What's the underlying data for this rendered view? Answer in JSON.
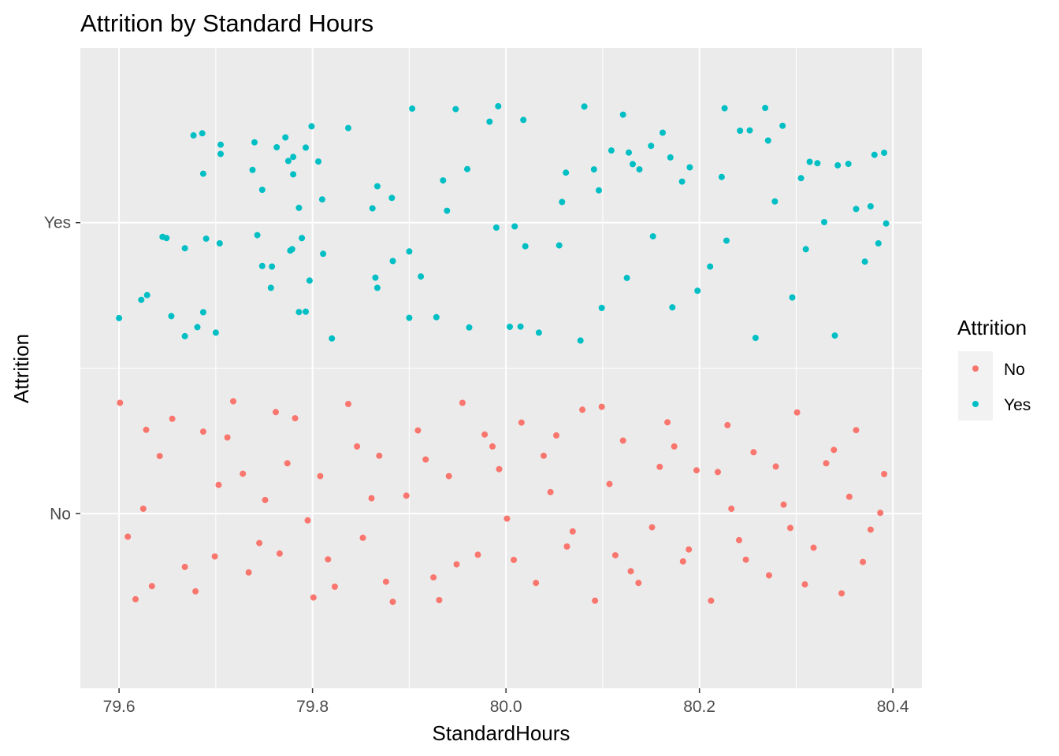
{
  "chart_data": {
    "type": "scatter",
    "title": "Attrition by Standard Hours",
    "xlabel": "StandardHours",
    "ylabel": "Attrition",
    "xlim": [
      79.56,
      80.43
    ],
    "x_ticks": [
      "79.6",
      "79.8",
      "80.0",
      "80.2",
      "80.4"
    ],
    "x_tick_values": [
      79.6,
      79.8,
      80.0,
      80.2,
      80.4
    ],
    "categories": [
      "No",
      "Yes"
    ],
    "ylim": [
      0.4,
      2.6
    ],
    "jitter": "horizontal and vertical jitter around StandardHours = 80 (width 0.4, height 0.4)",
    "grid": true,
    "legend": {
      "title": "Attrition",
      "position": "right",
      "entries": [
        {
          "label": "No",
          "color": "#F8766D"
        },
        {
          "label": "Yes",
          "color": "#00BFC4"
        }
      ]
    },
    "series": [
      {
        "name": "No",
        "color": "#F8766D",
        "point_count": 1233,
        "points": [
          [
            79.601,
            1.381
          ],
          [
            79.617,
            0.706
          ],
          [
            79.625,
            1.017
          ],
          [
            79.634,
            0.751
          ],
          [
            79.655,
            1.326
          ],
          [
            79.687,
            1.282
          ],
          [
            79.699,
            0.853
          ],
          [
            79.703,
            1.099
          ],
          [
            79.718,
            1.386
          ],
          [
            79.734,
            0.798
          ],
          [
            79.751,
            1.047
          ],
          [
            79.766,
            0.863
          ],
          [
            79.782,
            1.328
          ],
          [
            79.795,
            0.977
          ],
          [
            79.808,
            1.129
          ],
          [
            79.823,
            0.749
          ],
          [
            79.837,
            1.377
          ],
          [
            79.852,
            0.917
          ],
          [
            79.869,
            1.199
          ],
          [
            79.883,
            0.697
          ],
          [
            79.897,
            1.062
          ],
          [
            79.909,
            1.286
          ],
          [
            79.925,
            0.781
          ],
          [
            79.941,
            1.129
          ],
          [
            79.955,
            1.381
          ],
          [
            79.971,
            0.859
          ],
          [
            79.986,
            1.231
          ],
          [
            80.001,
            0.983
          ],
          [
            80.016,
            1.313
          ],
          [
            80.031,
            0.762
          ],
          [
            80.046,
            1.074
          ],
          [
            80.063,
            0.887
          ],
          [
            80.079,
            1.357
          ],
          [
            80.092,
            0.701
          ],
          [
            80.107,
            1.102
          ],
          [
            80.121,
            1.251
          ],
          [
            80.137,
            0.762
          ],
          [
            80.151,
            0.953
          ],
          [
            80.167,
            1.314
          ],
          [
            80.183,
            0.836
          ],
          [
            80.197,
            1.149
          ],
          [
            80.212,
            0.701
          ],
          [
            80.229,
            1.304
          ],
          [
            80.241,
            0.909
          ],
          [
            80.256,
            1.211
          ],
          [
            80.272,
            0.788
          ],
          [
            80.287,
            1.031
          ],
          [
            80.301,
            1.348
          ],
          [
            80.318,
            0.883
          ],
          [
            80.331,
            1.173
          ],
          [
            80.347,
            0.726
          ],
          [
            80.362,
            1.287
          ],
          [
            80.377,
            0.945
          ],
          [
            80.391,
            1.136
          ],
          [
            79.609,
            0.921
          ],
          [
            79.642,
            1.198
          ],
          [
            79.668,
            0.817
          ],
          [
            79.712,
            1.262
          ],
          [
            79.745,
            0.899
          ],
          [
            79.774,
            1.173
          ],
          [
            79.816,
            0.843
          ],
          [
            79.846,
            1.231
          ],
          [
            79.876,
            0.766
          ],
          [
            79.917,
            1.186
          ],
          [
            79.949,
            0.826
          ],
          [
            79.978,
            1.272
          ],
          [
            80.008,
            0.841
          ],
          [
            80.039,
            1.199
          ],
          [
            80.069,
            0.939
          ],
          [
            80.099,
            1.367
          ],
          [
            80.129,
            0.802
          ],
          [
            80.159,
            1.161
          ],
          [
            80.189,
            0.877
          ],
          [
            80.219,
            1.143
          ],
          [
            80.248,
            0.842
          ],
          [
            80.279,
            1.162
          ],
          [
            80.309,
            0.757
          ],
          [
            80.339,
            1.219
          ],
          [
            80.369,
            0.834
          ],
          [
            80.387,
            1.003
          ],
          [
            79.628,
            1.288
          ],
          [
            79.679,
            0.733
          ],
          [
            79.728,
            1.137
          ],
          [
            79.762,
            1.349
          ],
          [
            79.801,
            0.712
          ],
          [
            79.861,
            1.053
          ],
          [
            79.931,
            0.703
          ],
          [
            79.993,
            1.153
          ],
          [
            80.052,
            1.269
          ],
          [
            80.113,
            0.857
          ],
          [
            80.174,
            1.231
          ],
          [
            80.233,
            1.017
          ],
          [
            80.294,
            0.951
          ],
          [
            80.355,
            1.058
          ]
        ]
      },
      {
        "name": "Yes",
        "color": "#00BFC4",
        "point_count": 237,
        "points": [
          [
            79.6,
            1.672
          ],
          [
            79.623,
            1.735
          ],
          [
            79.629,
            1.751
          ],
          [
            79.645,
            1.951
          ],
          [
            79.649,
            1.947
          ],
          [
            79.654,
            1.679
          ],
          [
            79.668,
            1.912
          ],
          [
            79.668,
            1.61
          ],
          [
            79.677,
            2.3
          ],
          [
            79.681,
            1.641
          ],
          [
            79.686,
            2.307
          ],
          [
            79.687,
            2.168
          ],
          [
            79.687,
            1.692
          ],
          [
            79.69,
            1.945
          ],
          [
            79.7,
            1.622
          ],
          [
            79.704,
            1.929
          ],
          [
            79.705,
            2.236
          ],
          [
            79.705,
            2.268
          ],
          [
            79.738,
            2.181
          ],
          [
            79.74,
            2.276
          ],
          [
            79.743,
            1.957
          ],
          [
            79.748,
            1.851
          ],
          [
            79.748,
            2.113
          ],
          [
            79.757,
            1.776
          ],
          [
            79.758,
            1.849
          ],
          [
            79.763,
            2.259
          ],
          [
            79.772,
            2.293
          ],
          [
            79.775,
            2.212
          ],
          [
            79.777,
            1.904
          ],
          [
            79.779,
            1.909
          ],
          [
            79.78,
            2.226
          ],
          [
            79.78,
            2.166
          ],
          [
            79.786,
            2.051
          ],
          [
            79.786,
            1.693
          ],
          [
            79.789,
            1.947
          ],
          [
            79.793,
            1.694
          ],
          [
            79.793,
            2.258
          ],
          [
            79.797,
            1.801
          ],
          [
            79.799,
            2.331
          ],
          [
            79.806,
            2.21
          ],
          [
            79.81,
            2.08
          ],
          [
            79.811,
            1.893
          ],
          [
            79.82,
            1.602
          ],
          [
            79.837,
            2.325
          ],
          [
            79.862,
            2.049
          ],
          [
            79.865,
            1.811
          ],
          [
            79.867,
            2.125
          ],
          [
            79.867,
            1.776
          ],
          [
            79.882,
            2.085
          ],
          [
            79.883,
            1.868
          ],
          [
            79.9,
            1.901
          ],
          [
            79.9,
            1.673
          ],
          [
            79.903,
            2.392
          ],
          [
            79.912,
            1.815
          ],
          [
            79.928,
            1.675
          ],
          [
            79.935,
            2.145
          ],
          [
            79.939,
            2.041
          ],
          [
            79.948,
            2.39
          ],
          [
            79.96,
            2.184
          ],
          [
            79.962,
            1.64
          ],
          [
            79.983,
            2.347
          ],
          [
            79.99,
            1.983
          ],
          [
            79.992,
            2.4
          ],
          [
            80.004,
            1.642
          ],
          [
            80.009,
            1.987
          ],
          [
            80.015,
            1.643
          ],
          [
            80.018,
            2.353
          ],
          [
            80.02,
            1.919
          ],
          [
            80.034,
            1.622
          ],
          [
            80.055,
            1.922
          ],
          [
            80.058,
            2.071
          ],
          [
            80.062,
            2.172
          ],
          [
            80.077,
            1.595
          ],
          [
            80.081,
            2.399
          ],
          [
            80.091,
            2.183
          ],
          [
            80.096,
            2.111
          ],
          [
            80.099,
            1.707
          ],
          [
            80.109,
            2.248
          ],
          [
            80.121,
            2.371
          ],
          [
            80.125,
            1.81
          ],
          [
            80.127,
            2.241
          ],
          [
            80.131,
            2.201
          ],
          [
            80.138,
            2.183
          ],
          [
            80.15,
            2.264
          ],
          [
            80.152,
            1.953
          ],
          [
            80.162,
            2.309
          ],
          [
            80.17,
            2.224
          ],
          [
            80.172,
            1.709
          ],
          [
            80.182,
            2.141
          ],
          [
            80.19,
            2.19
          ],
          [
            80.198,
            1.766
          ],
          [
            80.211,
            1.849
          ],
          [
            80.223,
            2.157
          ],
          [
            80.226,
            2.393
          ],
          [
            80.228,
            1.938
          ],
          [
            80.242,
            2.316
          ],
          [
            80.252,
            2.317
          ],
          [
            80.258,
            1.604
          ],
          [
            80.268,
            2.394
          ],
          [
            80.271,
            2.282
          ],
          [
            80.278,
            2.073
          ],
          [
            80.286,
            2.333
          ],
          [
            80.296,
            1.743
          ],
          [
            80.305,
            2.153
          ],
          [
            80.31,
            1.909
          ],
          [
            80.314,
            2.209
          ],
          [
            80.322,
            2.204
          ],
          [
            80.329,
            2.002
          ],
          [
            80.34,
            1.612
          ],
          [
            80.343,
            2.197
          ],
          [
            80.354,
            2.202
          ],
          [
            80.362,
            2.047
          ],
          [
            80.371,
            1.866
          ],
          [
            80.377,
            2.056
          ],
          [
            80.381,
            2.233
          ],
          [
            80.385,
            1.929
          ],
          [
            80.391,
            2.24
          ],
          [
            80.393,
            1.997
          ]
        ]
      }
    ]
  }
}
